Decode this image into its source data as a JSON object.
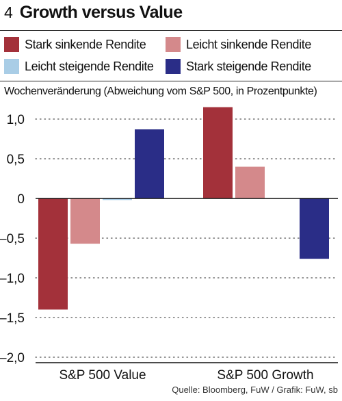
{
  "figure": {
    "number": "4",
    "title": "Growth versus Value",
    "source": "Quelle: Bloomberg, FuW / Grafik: FuW, sb"
  },
  "colors": {
    "strong_down": "#a3313a",
    "light_down": "#d4898b",
    "light_up": "#a9cde6",
    "strong_up": "#2a2d87",
    "grid": "#555555",
    "axis": "#111111"
  },
  "chart_data": {
    "type": "bar",
    "title": "Growth versus Value",
    "ylabel": "Wochenveränderung (Abweichung vom S&P 500, in Prozentpunkte)",
    "xlabel": "",
    "categories": [
      "S&P 500 Value",
      "S&P 500 Growth"
    ],
    "series": [
      {
        "name": "Stark sinkende Rendite",
        "color": "#a3313a",
        "values": [
          -1.4,
          1.15
        ]
      },
      {
        "name": "Leicht sinkende Rendite",
        "color": "#d4898b",
        "values": [
          -0.57,
          0.4
        ]
      },
      {
        "name": "Leicht steigende Rendite",
        "color": "#a9cde6",
        "values": [
          -0.02,
          0.0
        ]
      },
      {
        "name": "Stark steigende Rendite",
        "color": "#2a2d87",
        "values": [
          0.87,
          -0.76
        ]
      }
    ],
    "yticks": [
      1.0,
      0.5,
      0,
      -0.5,
      -1.0,
      -1.5,
      -2.0
    ],
    "ytick_labels": [
      "1,0",
      "0,5",
      "0",
      "–0,5",
      "–1,0",
      "–1,5",
      "–2,0"
    ],
    "ylim": [
      -2.0,
      1.3
    ],
    "grid": "dotted horizontal",
    "legend_position": "top, two columns"
  }
}
